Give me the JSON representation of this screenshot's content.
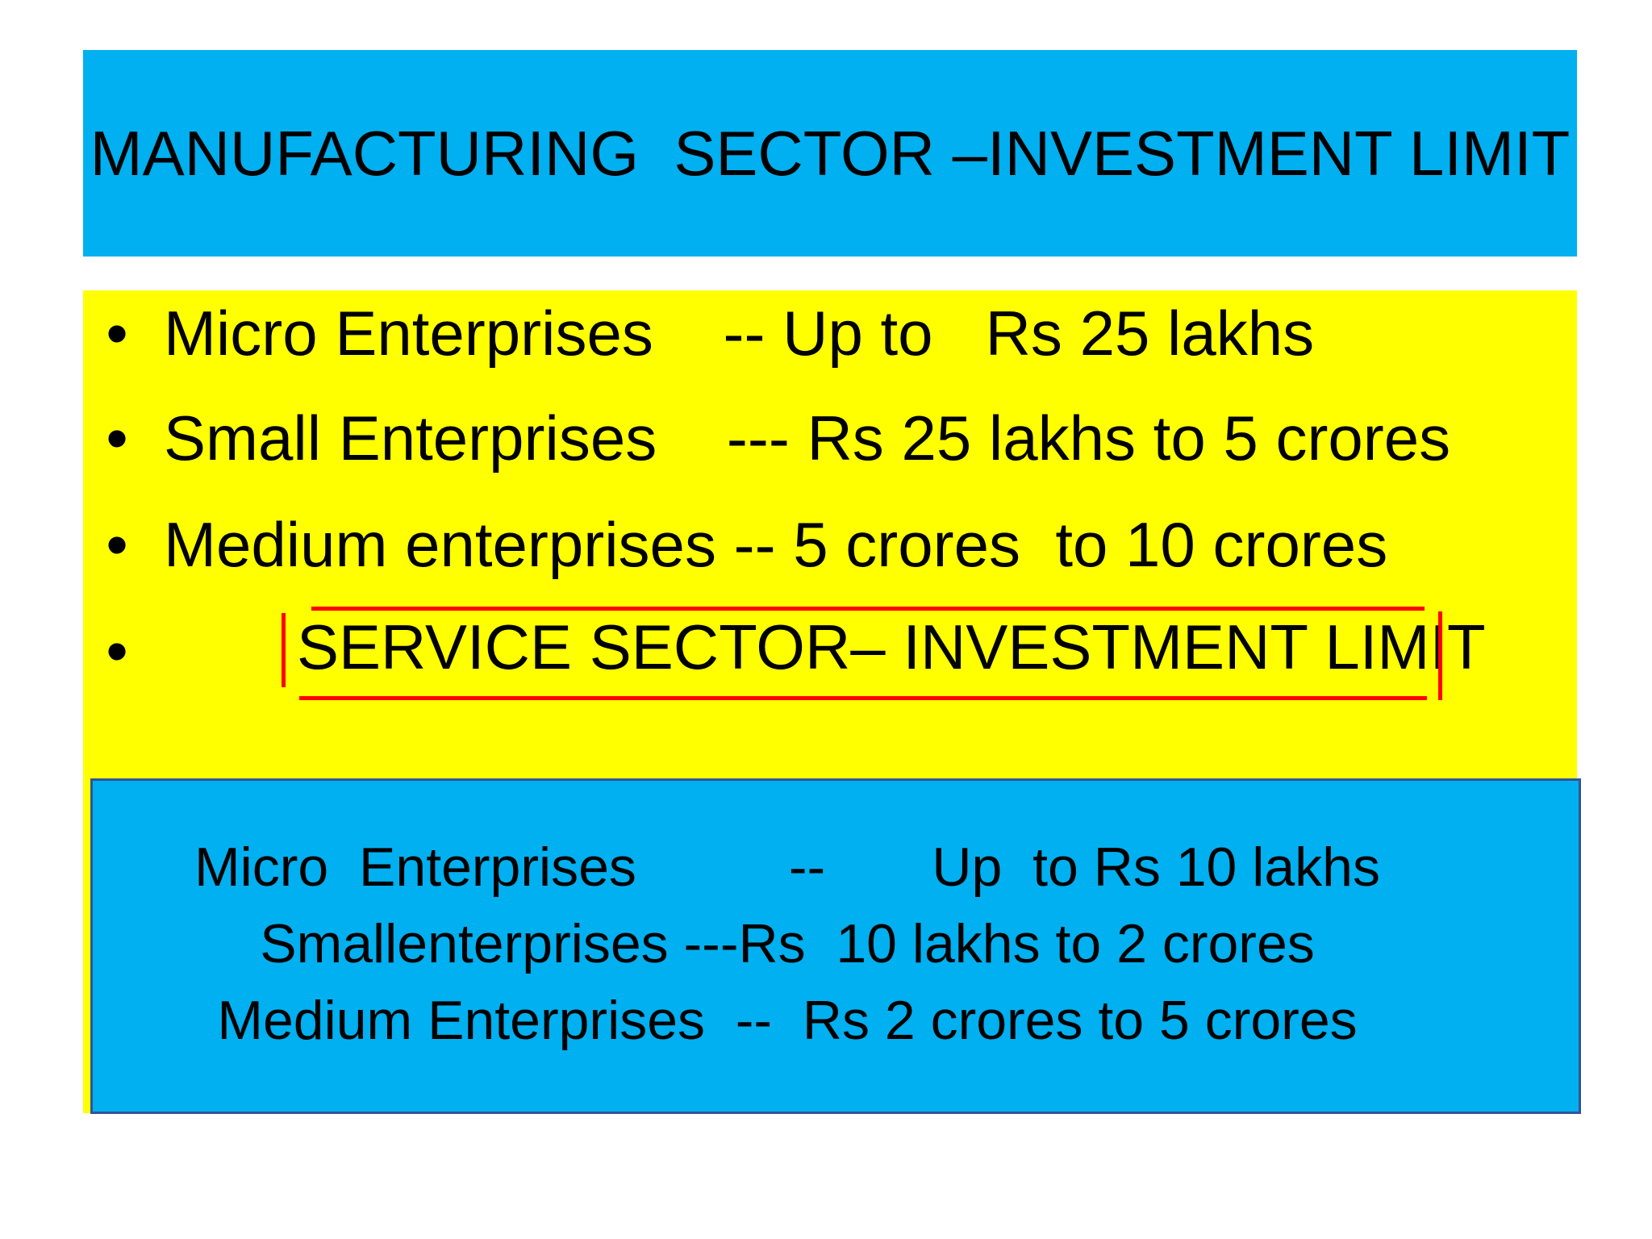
{
  "title": {
    "text": "MANUFACTURING  SECTOR –INVESTMENT LIMIT",
    "bg_color": "#00b0f0"
  },
  "manufacturing": {
    "bg_color": "#ffff00",
    "bullet_glyph": "•",
    "items": [
      {
        "label": "Micro Enterprises    -- Up to   Rs 25 lakhs"
      },
      {
        "label": "Small Enterprises    --- Rs 25 lakhs to 5 crores"
      },
      {
        "label": "Medium enterprises -- 5 crores  to 10 crores"
      }
    ]
  },
  "service_heading": {
    "text": "SERVICE SECTOR– INVESTMENT LIMIT",
    "highlight_color": "#ff0000"
  },
  "service": {
    "bg_color": "#00b0f0",
    "border_color": "#2f5597",
    "items": [
      {
        "label": "Micro  Enterprises          --       Up  to Rs 10 lakhs"
      },
      {
        "label": "Smallenterprises ---Rs  10 lakhs to 2 crores"
      },
      {
        "label": "Medium Enterprises  --  Rs 2 crores to 5 crores"
      }
    ]
  }
}
